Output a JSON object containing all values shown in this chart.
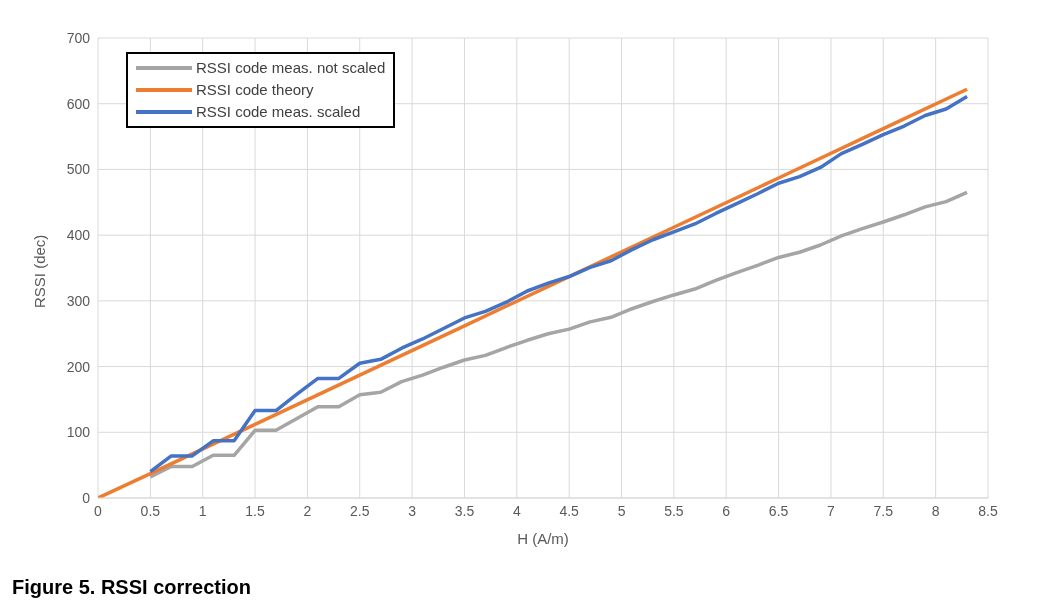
{
  "chart_data": {
    "type": "line",
    "title": "Figure 5.  RSSI correction",
    "xlabel": "H (A/m)",
    "ylabel": "RSSI (dec)",
    "xlim": [
      0,
      8.5
    ],
    "xticks": [
      0,
      0.5,
      1,
      1.5,
      2,
      2.5,
      3,
      3.5,
      4,
      4.5,
      5,
      5.5,
      6,
      6.5,
      7,
      7.5,
      8,
      8.5
    ],
    "ylim": [
      0,
      700
    ],
    "yticks": [
      0,
      100,
      200,
      300,
      400,
      500,
      600,
      700
    ],
    "grid": true,
    "legend": "top left",
    "marker": "none",
    "line_style": "solid",
    "series": [
      {
        "name": "RSSI code meas. not scaled",
        "color": "#a5a5a5",
        "x": [
          0.5,
          0.7,
          0.9,
          1.1,
          1.3,
          1.5,
          1.7,
          1.9,
          2.1,
          2.3,
          2.5,
          2.7,
          2.9,
          3.1,
          3.3,
          3.5,
          3.7,
          3.9,
          4.1,
          4.3,
          4.5,
          4.7,
          4.9,
          5.1,
          5.3,
          5.5,
          5.7,
          5.9,
          6.1,
          6.3,
          6.5,
          6.7,
          6.9,
          7.1,
          7.3,
          7.5,
          7.7,
          7.9,
          8.1,
          8.3
        ],
        "values": [
          32,
          48,
          48,
          65,
          65,
          103,
          103,
          121,
          139,
          139,
          157,
          161,
          177,
          187,
          199,
          210,
          217,
          229,
          240,
          250,
          257,
          268,
          275,
          288,
          299,
          309,
          318,
          331,
          343,
          354,
          366,
          374,
          385,
          399,
          410,
          420,
          431,
          443,
          451,
          465
        ]
      },
      {
        "name": "RSSI code theory",
        "color": "#ed7d31",
        "x": [
          0,
          0.5,
          1.5,
          2.5,
          3.5,
          4.5,
          5.5,
          6.5,
          7.5,
          8.3
        ],
        "values": [
          0,
          37,
          112,
          187,
          262,
          337,
          412,
          487,
          562,
          622
        ]
      },
      {
        "name": "RSSI code meas. scaled",
        "color": "#4472c4",
        "x": [
          0.5,
          0.7,
          0.9,
          1.1,
          1.3,
          1.5,
          1.7,
          1.9,
          2.1,
          2.3,
          2.5,
          2.7,
          2.9,
          3.1,
          3.3,
          3.5,
          3.7,
          3.9,
          4.1,
          4.3,
          4.5,
          4.7,
          4.9,
          5.1,
          5.3,
          5.5,
          5.7,
          5.9,
          6.1,
          6.3,
          6.5,
          6.7,
          6.9,
          7.1,
          7.3,
          7.5,
          7.7,
          7.9,
          8.1,
          8.3
        ],
        "values": [
          40,
          64,
          64,
          87,
          87,
          133,
          133,
          158,
          182,
          182,
          205,
          211,
          228,
          242,
          258,
          274,
          284,
          298,
          315,
          327,
          337,
          351,
          361,
          378,
          393,
          405,
          417,
          433,
          448,
          463,
          479,
          489,
          503,
          524,
          538,
          553,
          566,
          582,
          592,
          611
        ]
      }
    ]
  }
}
